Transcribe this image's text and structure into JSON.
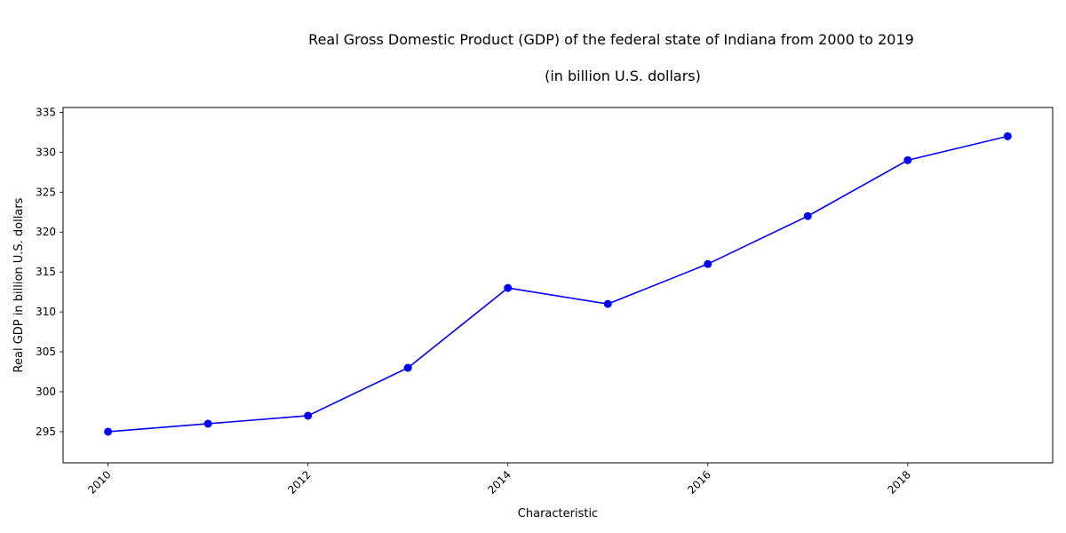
{
  "chart_data": {
    "type": "line",
    "title": "Real Gross Domestic Product (GDP) of the federal state of Indiana from 2000 to 2019",
    "subtitle": "(in billion U.S. dollars)",
    "xlabel": "Characteristic",
    "ylabel": "Real GDP in billion U.S. dollars",
    "x": [
      2010,
      2011,
      2012,
      2013,
      2014,
      2015,
      2016,
      2017,
      2018,
      2019
    ],
    "series": [
      {
        "values": [
          295,
          296,
          297,
          303,
          313,
          311,
          316,
          322,
          329,
          332
        ],
        "color": "#0000ff"
      }
    ],
    "xlim": [
      2009.55,
      2019.45
    ],
    "ylim": [
      291.1,
      335.6
    ],
    "xticks": [
      2010,
      2012,
      2014,
      2016,
      2018
    ],
    "yticks": [
      295,
      300,
      305,
      310,
      315,
      320,
      325,
      330,
      335
    ],
    "grid": false,
    "legend": "none",
    "marker": "circle"
  }
}
